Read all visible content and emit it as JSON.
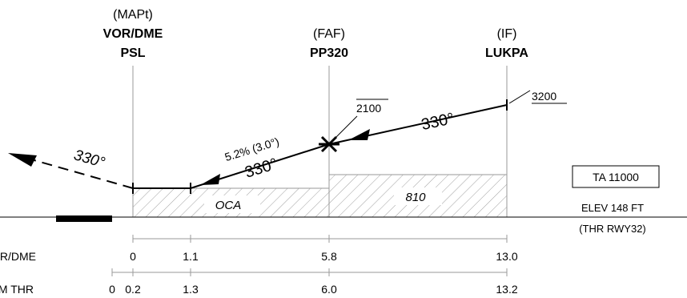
{
  "fixes": {
    "mapt": {
      "role": "(MAPt)",
      "type": "VOR/DME",
      "name": "PSL"
    },
    "faf": {
      "role": "(FAF)",
      "name": "PP320"
    },
    "if": {
      "role": "(IF)",
      "name": "LUKPA"
    }
  },
  "altitudes": {
    "faf_alt": "2100",
    "if_alt": "3200"
  },
  "courses": {
    "initial": "330°",
    "final": "330°",
    "missed": "330°"
  },
  "gradient": "5.2% (3.0°)",
  "boxes": {
    "oca": "OCA",
    "intermediate": "810"
  },
  "info": {
    "ta": "TA 11000",
    "elev": "ELEV 148 FT",
    "thr": "(THR RWY32)"
  },
  "scales": {
    "vor_dme": {
      "label": "VOR/DME",
      "ticks": [
        "0",
        "1.1",
        "5.8",
        "13.0"
      ]
    },
    "fm_thr": {
      "label": "FM THR",
      "ticks": [
        "0",
        "0.2",
        "1.3",
        "6.0",
        "13.2"
      ]
    }
  },
  "colors": {
    "line": "#000000",
    "guide": "#9a9a9a",
    "hatch": "#9a9a9a"
  }
}
